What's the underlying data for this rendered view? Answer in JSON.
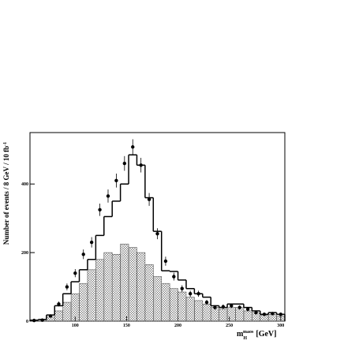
{
  "chart_data": {
    "type": "histogram",
    "bins": [
      56,
      64,
      72,
      80,
      88,
      96,
      104,
      112,
      120,
      128,
      136,
      144,
      152,
      160,
      168,
      176,
      184,
      192,
      200,
      208,
      216,
      224,
      232,
      240,
      248,
      256,
      264,
      272,
      280,
      288,
      296,
      304
    ],
    "series": [
      {
        "style": "step",
        "color": "#000000",
        "values": [
          3,
          5,
          18,
          45,
          80,
          115,
          150,
          180,
          250,
          305,
          350,
          400,
          485,
          455,
          360,
          262,
          147,
          145,
          120,
          95,
          80,
          70,
          45,
          40,
          50,
          50,
          40,
          30,
          20,
          25,
          20
        ]
      },
      {
        "style": "hatched",
        "color": "#555555",
        "values": [
          2,
          4,
          12,
          30,
          55,
          80,
          110,
          150,
          180,
          200,
          195,
          225,
          215,
          200,
          165,
          130,
          110,
          95,
          85,
          70,
          60,
          50,
          40,
          35,
          40,
          40,
          30,
          25,
          18,
          20,
          15
        ]
      },
      {
        "style": "points",
        "color": "#000000",
        "values": [
          2,
          3,
          15,
          50,
          100,
          140,
          195,
          230,
          325,
          365,
          410,
          460,
          508,
          455,
          355,
          255,
          175,
          130,
          95,
          80,
          80,
          55,
          40,
          42,
          45,
          40,
          35,
          25,
          20,
          22,
          20
        ],
        "errors": [
          1.4,
          1.7,
          3.9,
          7.1,
          10,
          11.8,
          14,
          15.2,
          18,
          19.1,
          20.2,
          21.4,
          22.5,
          21.3,
          18.8,
          16,
          13.2,
          11.4,
          9.7,
          8.9,
          8.9,
          7.4,
          6.3,
          6.5,
          6.7,
          6.3,
          5.9,
          5,
          4.5,
          4.7,
          4.5
        ]
      }
    ],
    "xlim": [
      56,
      304
    ],
    "ylim": [
      0,
      550
    ],
    "xticks": [
      100,
      150,
      200,
      250,
      300
    ],
    "yticks": [
      0,
      200,
      400
    ],
    "xlabel": {
      "main": "m",
      "sup": "maos",
      "sub": "H",
      "unit": "[GeV]"
    },
    "ylabel": {
      "text": "Number of events / 8 GeV / 10 fb",
      "sup": "-1"
    }
  }
}
